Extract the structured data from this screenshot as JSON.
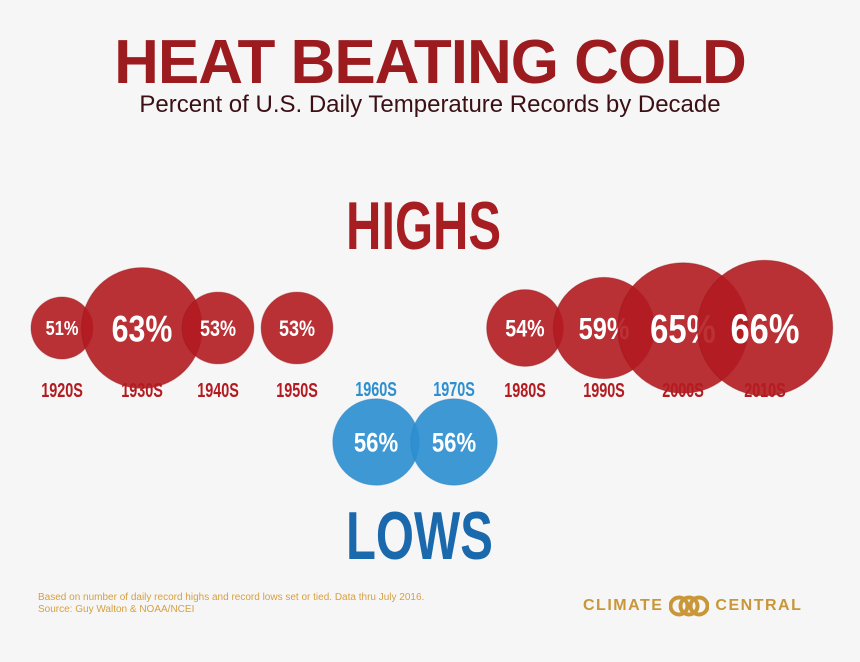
{
  "title": "HEAT BEATING COLD",
  "subtitle": "Percent of U.S. Daily Temperature Records by Decade",
  "chart_data": {
    "type": "bubble",
    "highs_label": "HIGHS",
    "lows_label": "LOWS",
    "highs": [
      {
        "decade": "1920s",
        "label": "1920S",
        "value": 51,
        "text": "51%"
      },
      {
        "decade": "1930s",
        "label": "1930S",
        "value": 63,
        "text": "63%"
      },
      {
        "decade": "1940s",
        "label": "1940S",
        "value": 53,
        "text": "53%"
      },
      {
        "decade": "1950s",
        "label": "1950S",
        "value": 53,
        "text": "53%"
      },
      {
        "decade": "1980s",
        "label": "1980S",
        "value": 54,
        "text": "54%"
      },
      {
        "decade": "1990s",
        "label": "1990S",
        "value": 59,
        "text": "59%"
      },
      {
        "decade": "2000s",
        "label": "2000S",
        "value": 65,
        "text": "65%"
      },
      {
        "decade": "2010s",
        "label": "2010S",
        "value": 66,
        "text": "66%"
      }
    ],
    "lows": [
      {
        "decade": "1960s",
        "label": "1960S",
        "value": 56,
        "text": "56%"
      },
      {
        "decade": "1970s",
        "label": "1970S",
        "value": 56,
        "text": "56%"
      }
    ],
    "colors": {
      "highs": "#b31b20",
      "lows": "#2e8fd0",
      "highs_label": "#a61e22",
      "lows_label": "#1a69ad"
    }
  },
  "footnote": {
    "line1": "Based on number of daily record highs and record lows set or tied. Data thru July 2016.",
    "line2": "Source: Guy Walton & NOAA/NCEI"
  },
  "brand": {
    "left": "CLIMATE",
    "right": "CENTRAL",
    "logo_icon": "climate-central-rings-icon"
  }
}
